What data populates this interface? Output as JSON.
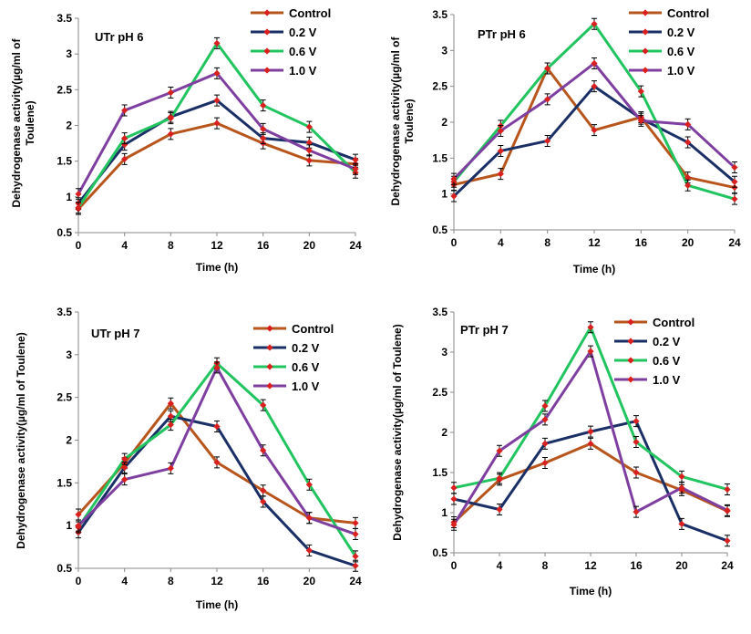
{
  "colors": {
    "Control": "#b8551c",
    "0.2 V": "#1a2f66",
    "0.6 V": "#22c460",
    "1.0 V": "#7e3fa0",
    "marker": "#d9201e",
    "axis": "#888888",
    "error": "#000000"
  },
  "chart_data": [
    {
      "type": "line",
      "title": "UTr pH 6",
      "xlabel": "Time (h)",
      "ylabel": [
        "Dehydrogenase activity(µg/ml of",
        "Toulene)"
      ],
      "x": [
        0,
        4,
        8,
        12,
        16,
        20,
        24
      ],
      "xlim": [
        0,
        24
      ],
      "ylim": [
        0.5,
        3.5
      ],
      "yticks": [
        "0.5",
        "1",
        "1.5",
        "2",
        "2.5",
        "3",
        "3.5"
      ],
      "xticks": [
        "0",
        "4",
        "8",
        "12",
        "16",
        "20",
        "24"
      ],
      "legend_position": "top-right",
      "series": [
        {
          "name": "Control",
          "values": [
            0.83,
            1.53,
            1.88,
            2.03,
            1.75,
            1.51,
            1.46
          ]
        },
        {
          "name": "0.2 V",
          "values": [
            0.91,
            1.73,
            2.12,
            2.35,
            1.82,
            1.76,
            1.52
          ]
        },
        {
          "name": "0.6 V",
          "values": [
            0.85,
            1.82,
            2.1,
            3.15,
            2.28,
            1.98,
            1.34
          ]
        },
        {
          "name": "1.0 V",
          "values": [
            1.04,
            2.21,
            2.46,
            2.73,
            1.95,
            1.65,
            1.39
          ]
        }
      ]
    },
    {
      "type": "line",
      "title": "PTr pH 6",
      "xlabel": "Time (h)",
      "ylabel": [
        "Dehydrogenase activity(µg/ml of",
        "Toulene)"
      ],
      "x": [
        0,
        4,
        8,
        12,
        16,
        20,
        24
      ],
      "xlim": [
        0,
        24
      ],
      "ylim": [
        0.5,
        3.5
      ],
      "yticks": [
        "0.5",
        "1",
        "1.5",
        "2",
        "2.5",
        "3",
        "3.5"
      ],
      "xticks": [
        "0",
        "4",
        "8",
        "12",
        "16",
        "20",
        "24"
      ],
      "legend_position": "top-right",
      "series": [
        {
          "name": "Control",
          "values": [
            1.13,
            1.28,
            2.75,
            1.89,
            2.07,
            1.23,
            1.09
          ]
        },
        {
          "name": "0.2 V",
          "values": [
            0.97,
            1.6,
            1.74,
            2.5,
            2.05,
            1.72,
            1.17
          ]
        },
        {
          "name": "0.6 V",
          "values": [
            1.17,
            1.95,
            2.75,
            3.37,
            2.43,
            1.12,
            0.93
          ]
        },
        {
          "name": "1.0 V",
          "values": [
            1.21,
            1.88,
            2.32,
            2.82,
            2.02,
            1.97,
            1.37
          ]
        }
      ]
    },
    {
      "type": "line",
      "title": "UTr pH 7",
      "xlabel": "Time (h)",
      "ylabel": [
        "Dehydrogenase activity(µg/ml of Toulene)"
      ],
      "x": [
        0,
        4,
        8,
        12,
        16,
        20,
        24
      ],
      "xlim": [
        0,
        24
      ],
      "ylim": [
        0.5,
        3.5
      ],
      "yticks": [
        "0.5",
        "1",
        "1.5",
        "2",
        "2.5",
        "3",
        "3.5"
      ],
      "xticks": [
        "0",
        "4",
        "8",
        "12",
        "16",
        "20",
        "24"
      ],
      "legend_position": "top-right",
      "series": [
        {
          "name": "Control",
          "values": [
            1.13,
            1.73,
            2.43,
            1.74,
            1.41,
            1.09,
            1.03
          ]
        },
        {
          "name": "0.2 V",
          "values": [
            0.92,
            1.68,
            2.28,
            2.16,
            1.28,
            0.71,
            0.53
          ]
        },
        {
          "name": "0.6 V",
          "values": [
            0.98,
            1.78,
            2.18,
            2.9,
            2.41,
            1.48,
            0.64
          ]
        },
        {
          "name": "1.0 V",
          "values": [
            1.0,
            1.54,
            1.67,
            2.85,
            1.88,
            1.09,
            0.9
          ]
        }
      ]
    },
    {
      "type": "line",
      "title": "PTr pH 7",
      "xlabel": "Time (h)",
      "ylabel": [
        "Dehydrogenase activity(µg/ml of Toulene)"
      ],
      "x": [
        0,
        4,
        8,
        12,
        16,
        20,
        24
      ],
      "xlim": [
        0,
        24
      ],
      "ylim": [
        0.5,
        3.5
      ],
      "yticks": [
        "0.5",
        "1",
        "1.5",
        "2",
        "2.5",
        "3",
        "3.5"
      ],
      "xticks": [
        "0",
        "4",
        "8",
        "12",
        "16",
        "20",
        "24"
      ],
      "legend_position": "top-right",
      "series": [
        {
          "name": "Control",
          "values": [
            0.88,
            1.41,
            1.62,
            1.86,
            1.5,
            1.28,
            1.02
          ]
        },
        {
          "name": "0.2 V",
          "values": [
            1.17,
            1.04,
            1.86,
            2.01,
            2.14,
            0.86,
            0.65
          ]
        },
        {
          "name": "0.6 V",
          "values": [
            1.31,
            1.43,
            2.33,
            3.31,
            1.88,
            1.45,
            1.29
          ]
        },
        {
          "name": "1.0 V",
          "values": [
            0.85,
            1.77,
            2.16,
            3.01,
            1.01,
            1.31,
            1.03
          ]
        }
      ]
    }
  ]
}
